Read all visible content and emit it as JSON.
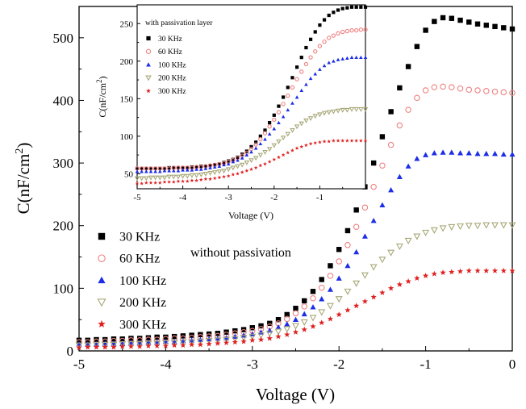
{
  "chart_data": [
    {
      "id": "main",
      "type": "scatter",
      "xlabel": "Voltage (V)",
      "ylabel_base": "C(nF/cm",
      "ylabel_sup": "2",
      "ylabel_close": ")",
      "xlim": [
        -5,
        0
      ],
      "ylim": [
        0,
        550
      ],
      "xticks": [
        -5,
        -4,
        -3,
        -2,
        -1,
        0
      ],
      "yticks": [
        0,
        100,
        200,
        300,
        400,
        500
      ],
      "grid": false,
      "legend_position": "bottom-left",
      "annotation": "without passivation",
      "x": [
        -5.0,
        -4.9,
        -4.8,
        -4.7,
        -4.6,
        -4.5,
        -4.4,
        -4.3,
        -4.2,
        -4.1,
        -4.0,
        -3.9,
        -3.8,
        -3.7,
        -3.6,
        -3.5,
        -3.4,
        -3.3,
        -3.2,
        -3.1,
        -3.0,
        -2.9,
        -2.8,
        -2.7,
        -2.6,
        -2.5,
        -2.4,
        -2.3,
        -2.2,
        -2.1,
        -2.0,
        -1.9,
        -1.8,
        -1.7,
        -1.6,
        -1.5,
        -1.4,
        -1.3,
        -1.2,
        -1.1,
        -1.0,
        -0.9,
        -0.8,
        -0.7,
        -0.6,
        -0.5,
        -0.4,
        -0.3,
        -0.2,
        -0.1,
        0.0
      ],
      "series": [
        {
          "name": "30 KHz",
          "marker": "square",
          "color": "#000000",
          "fill": true,
          "values": [
            17,
            17,
            18,
            18,
            19,
            19,
            20,
            20,
            21,
            22,
            22,
            23,
            24,
            25,
            26,
            27,
            28,
            30,
            32,
            34,
            37,
            40,
            44,
            50,
            58,
            68,
            80,
            95,
            114,
            136,
            162,
            192,
            225,
            262,
            300,
            342,
            382,
            420,
            454,
            486,
            512,
            526,
            532,
            531,
            528,
            525,
            522,
            520,
            518,
            516,
            514
          ]
        },
        {
          "name": "60 KHz",
          "marker": "circle-open",
          "color": "#f08080",
          "fill": false,
          "values": [
            14,
            14,
            15,
            15,
            16,
            16,
            17,
            17,
            18,
            18,
            19,
            20,
            20,
            21,
            22,
            23,
            24,
            26,
            28,
            30,
            32,
            35,
            39,
            44,
            51,
            60,
            71,
            84,
            101,
            120,
            143,
            169,
            198,
            229,
            262,
            296,
            329,
            360,
            385,
            404,
            416,
            421,
            422,
            421,
            419,
            417,
            416,
            415,
            414,
            413,
            412
          ]
        },
        {
          "name": "100 KHz",
          "marker": "triangle-up",
          "color": "#1c2ee6",
          "fill": true,
          "values": [
            11,
            11,
            11,
            12,
            12,
            12,
            13,
            13,
            14,
            14,
            15,
            15,
            16,
            17,
            18,
            19,
            20,
            21,
            23,
            25,
            27,
            30,
            33,
            38,
            43,
            50,
            59,
            70,
            83,
            98,
            116,
            136,
            158,
            183,
            208,
            233,
            257,
            278,
            295,
            307,
            313,
            316,
            317,
            317,
            316,
            316,
            315,
            315,
            315,
            314,
            314
          ]
        },
        {
          "name": "200 KHz",
          "marker": "triangle-down-open",
          "color": "#a8a878",
          "fill": false,
          "values": [
            9,
            9,
            10,
            10,
            10,
            11,
            11,
            11,
            12,
            12,
            13,
            13,
            14,
            14,
            15,
            16,
            17,
            18,
            19,
            21,
            23,
            25,
            28,
            31,
            35,
            40,
            46,
            53,
            62,
            72,
            83,
            95,
            108,
            121,
            134,
            146,
            157,
            167,
            176,
            183,
            189,
            193,
            196,
            198,
            199,
            200,
            200,
            201,
            201,
            201,
            201
          ]
        },
        {
          "name": "300 KHz",
          "marker": "star",
          "color": "#e02020",
          "fill": true,
          "values": [
            5,
            6,
            6,
            6,
            6,
            7,
            7,
            7,
            8,
            8,
            8,
            9,
            9,
            10,
            10,
            11,
            12,
            13,
            14,
            15,
            17,
            18,
            20,
            23,
            26,
            30,
            34,
            39,
            45,
            51,
            58,
            65,
            72,
            79,
            86,
            93,
            100,
            106,
            111,
            116,
            120,
            123,
            125,
            126,
            127,
            128,
            128,
            128,
            128,
            128,
            128
          ]
        }
      ]
    },
    {
      "id": "inset",
      "type": "scatter",
      "xlabel": "Voltage (V)",
      "ylabel_base": "C(nF/cm",
      "ylabel_sup": "2",
      "ylabel_close": ")",
      "xlim": [
        -5,
        0
      ],
      "ylim": [
        30,
        275
      ],
      "xticks": [
        -5,
        -4,
        -3,
        -2,
        -1
      ],
      "yticks": [
        50,
        100,
        150,
        200,
        250
      ],
      "grid": false,
      "legend_title": "with passivation layer",
      "legend_position": "top-left",
      "x": [
        -5.0,
        -4.9,
        -4.8,
        -4.7,
        -4.6,
        -4.5,
        -4.4,
        -4.3,
        -4.2,
        -4.1,
        -4.0,
        -3.9,
        -3.8,
        -3.7,
        -3.6,
        -3.5,
        -3.4,
        -3.3,
        -3.2,
        -3.1,
        -3.0,
        -2.9,
        -2.8,
        -2.7,
        -2.6,
        -2.5,
        -2.4,
        -2.3,
        -2.2,
        -2.1,
        -2.0,
        -1.9,
        -1.8,
        -1.7,
        -1.6,
        -1.5,
        -1.4,
        -1.3,
        -1.2,
        -1.1,
        -1.0,
        -0.9,
        -0.8,
        -0.7,
        -0.6,
        -0.5,
        -0.4,
        -0.3,
        -0.2,
        -0.1,
        0.0
      ],
      "series": [
        {
          "name": "30 KHz",
          "marker": "square",
          "color": "#000000",
          "fill": true,
          "values": [
            57,
            57,
            57,
            57,
            57,
            57,
            57,
            58,
            58,
            58,
            58,
            58,
            59,
            59,
            60,
            60,
            61,
            62,
            63,
            65,
            67,
            69,
            72,
            76,
            80,
            86,
            92,
            100,
            108,
            118,
            128,
            140,
            152,
            165,
            178,
            192,
            205,
            218,
            229,
            239,
            248,
            255,
            261,
            265,
            268,
            270,
            271,
            272,
            272,
            272,
            272
          ]
        },
        {
          "name": "60 KHz",
          "marker": "circle-open",
          "color": "#f08080",
          "fill": false,
          "values": [
            57,
            57,
            57,
            57,
            57,
            57,
            57,
            57,
            58,
            58,
            58,
            58,
            58,
            59,
            59,
            60,
            61,
            62,
            63,
            64,
            66,
            68,
            71,
            74,
            78,
            83,
            89,
            96,
            104,
            113,
            122,
            132,
            143,
            154,
            165,
            176,
            186,
            196,
            205,
            213,
            220,
            226,
            231,
            234,
            237,
            239,
            240,
            241,
            241,
            242,
            242
          ]
        },
        {
          "name": "100 KHz",
          "marker": "triangle-up",
          "color": "#1c2ee6",
          "fill": true,
          "values": [
            53,
            53,
            53,
            53,
            53,
            53,
            54,
            54,
            54,
            54,
            55,
            55,
            55,
            56,
            56,
            57,
            58,
            59,
            60,
            62,
            63,
            66,
            68,
            71,
            75,
            79,
            84,
            90,
            96,
            103,
            110,
            118,
            126,
            135,
            144,
            152,
            161,
            169,
            177,
            183,
            189,
            194,
            198,
            200,
            202,
            203,
            204,
            205,
            205,
            205,
            205
          ]
        },
        {
          "name": "200 KHz",
          "marker": "triangle-down-open",
          "color": "#a8a878",
          "fill": false,
          "values": [
            44,
            44,
            44,
            45,
            45,
            45,
            45,
            46,
            46,
            46,
            47,
            47,
            48,
            48,
            49,
            50,
            51,
            52,
            53,
            54,
            56,
            58,
            60,
            62,
            65,
            68,
            71,
            75,
            79,
            83,
            88,
            93,
            98,
            103,
            108,
            113,
            117,
            121,
            124,
            127,
            129,
            131,
            132,
            133,
            134,
            135,
            135,
            136,
            136,
            136,
            136
          ]
        },
        {
          "name": "300 KHz",
          "marker": "star",
          "color": "#e02020",
          "fill": true,
          "values": [
            37,
            37,
            38,
            38,
            38,
            38,
            39,
            39,
            39,
            40,
            40,
            40,
            41,
            41,
            42,
            43,
            43,
            44,
            45,
            46,
            47,
            49,
            50,
            52,
            54,
            56,
            58,
            61,
            63,
            66,
            69,
            72,
            75,
            78,
            81,
            84,
            86,
            88,
            90,
            91,
            92,
            93,
            93,
            94,
            94,
            94,
            94,
            94,
            94,
            94,
            94
          ]
        }
      ]
    }
  ]
}
